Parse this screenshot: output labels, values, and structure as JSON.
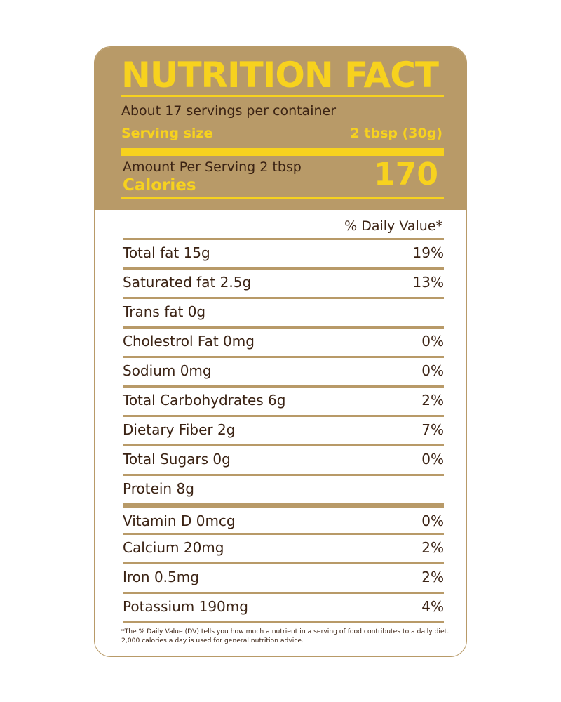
{
  "title": "NUTRITION FACT",
  "servings_per_container": "About 17 servings per container",
  "serving_size_label": "Serving size",
  "serving_size_value": "2 tbsp (30g)",
  "amount_per_serving": "Amount Per Serving 2 tbsp",
  "calories_label": "Calories",
  "calories_value": "170",
  "daily_value_header": "% Daily Value*",
  "nutrients": [
    {
      "name": "Total fat 15g",
      "dv": "19%"
    },
    {
      "name": "Saturated fat 2.5g",
      "dv": "13%"
    },
    {
      "name": "Trans fat 0g",
      "dv": ""
    },
    {
      "name": "Cholestrol Fat 0mg",
      "dv": "0%"
    },
    {
      "name": "Sodium 0mg",
      "dv": "0%"
    },
    {
      "name": "Total Carbohydrates 6g",
      "dv": "2%"
    },
    {
      "name": "Dietary Fiber 2g",
      "dv": "7%"
    },
    {
      "name": "Total Sugars 0g",
      "dv": "0%"
    },
    {
      "name": "Protein 8g",
      "dv": ""
    },
    {
      "name": "Vitamin D 0mcg",
      "dv": "0%"
    },
    {
      "name": "Calcium 20mg",
      "dv": "2%"
    },
    {
      "name": "Iron 0.5mg",
      "dv": "2%"
    },
    {
      "name": "Potassium 190mg",
      "dv": "4%"
    }
  ],
  "footnote": "*The % Daily Value (DV) tells you how much a nutrient in a serving of food contributes to a daily diet. 2,000 calories a day is used for general nutrition advice.",
  "colors": {
    "header_bg": "#b89a68",
    "accent_yellow": "#f7d21e",
    "text_brown": "#3b2314"
  }
}
